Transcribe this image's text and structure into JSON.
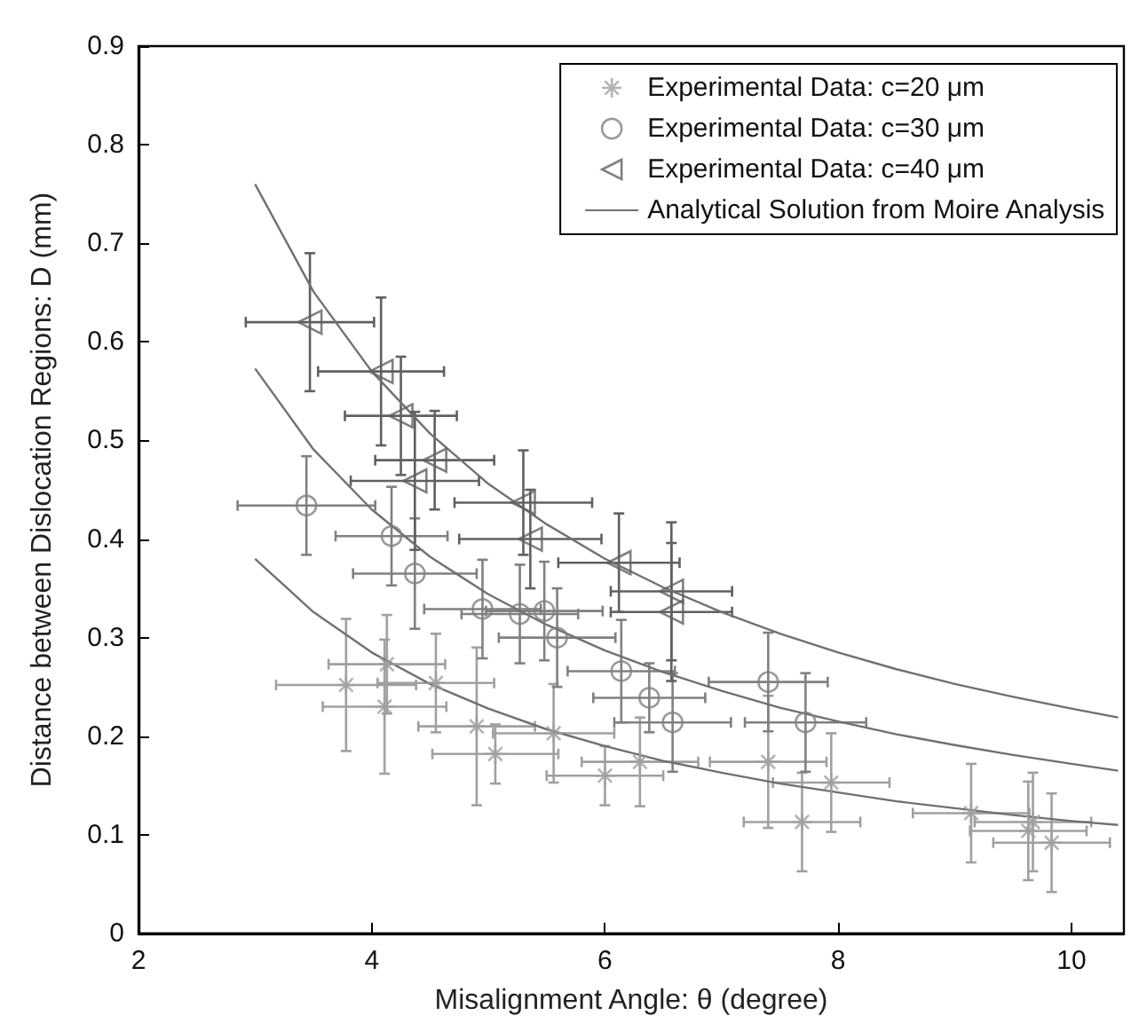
{
  "chart_data": {
    "type": "scatter",
    "xlabel": "Misalignment Angle: θ (degree)",
    "ylabel": "Distance between Dislocation Regions: D (mm)",
    "xlim": [
      2,
      10.45
    ],
    "xticks": [
      2,
      4,
      6,
      8,
      10
    ],
    "ylim": [
      0,
      0.9
    ],
    "yticks": [
      0,
      0.1,
      0.2,
      0.3,
      0.4,
      0.5,
      0.6,
      0.7,
      0.8,
      0.9
    ],
    "grid": false,
    "legend": "top right",
    "series": [
      {
        "name": "Experimental Data: c=20 μm",
        "marker": "cross",
        "color": "#a0a0a0",
        "x": [
          3.78,
          4.13,
          4.11,
          4.55,
          4.9,
          5.06,
          5.56,
          6.0,
          6.3,
          7.4,
          7.69,
          7.94,
          9.14,
          9.63,
          9.67,
          9.83
        ],
        "values": [
          0.252,
          0.273,
          0.23,
          0.254,
          0.21,
          0.182,
          0.203,
          0.16,
          0.174,
          0.174,
          0.113,
          0.153,
          0.122,
          0.104,
          0.113,
          0.092
        ],
        "errors": [
          0.067,
          0.05,
          0.068,
          0.05,
          0.08,
          0.03,
          0.05,
          0.03,
          0.045,
          0.067,
          0.05,
          0.05,
          0.05,
          0.05,
          0.05,
          0.05
        ],
        "xerrors": [
          0.6,
          0.5,
          0.53,
          0.5,
          0.5,
          0.54,
          0.52,
          0.5,
          0.5,
          0.5,
          0.5,
          0.5,
          0.5,
          0.5,
          0.5,
          0.5
        ]
      },
      {
        "name": "Experimental Data: c=30 μm",
        "marker": "circle",
        "color": "#808080",
        "x": [
          3.44,
          4.17,
          4.37,
          4.95,
          5.27,
          5.48,
          5.59,
          6.14,
          6.38,
          6.58,
          7.4,
          7.72
        ],
        "values": [
          0.434,
          0.403,
          0.365,
          0.329,
          0.324,
          0.327,
          0.3,
          0.266,
          0.239,
          0.214,
          0.255,
          0.214
        ],
        "errors": [
          0.05,
          0.05,
          0.056,
          0.05,
          0.05,
          0.05,
          0.05,
          0.052,
          0.035,
          0.05,
          0.05,
          0.05
        ],
        "xerrors": [
          0.59,
          0.48,
          0.53,
          0.5,
          0.5,
          0.5,
          0.5,
          0.46,
          0.48,
          0.5,
          0.51,
          0.52
        ]
      },
      {
        "name": "Experimental Data: c=40 μm",
        "marker": "triangle",
        "color": "#606060",
        "x": [
          3.47,
          4.08,
          4.25,
          4.54,
          4.37,
          5.3,
          5.36,
          6.12,
          6.57,
          6.57
        ],
        "values": [
          0.62,
          0.57,
          0.525,
          0.48,
          0.459,
          0.437,
          0.4,
          0.376,
          0.347,
          0.326
        ],
        "errors": [
          0.07,
          0.075,
          0.06,
          0.05,
          0.07,
          0.053,
          0.05,
          0.05,
          0.07,
          0.07
        ],
        "xerrors": [
          0.55,
          0.54,
          0.48,
          0.51,
          0.55,
          0.59,
          0.61,
          0.52,
          0.52,
          0.52
        ]
      },
      {
        "name": "Analytical Solution from Moire Analysis",
        "type": "line",
        "marker": "none",
        "color": "#707070",
        "x": [
          3,
          3.5,
          4,
          4.5,
          5,
          5.5,
          6,
          6.5,
          7,
          7.5,
          8,
          8.5,
          9,
          9.5,
          10,
          10.4
        ],
        "values": [
          0.38,
          0.326,
          0.285,
          0.253,
          0.228,
          0.207,
          0.19,
          0.175,
          0.163,
          0.152,
          0.143,
          0.134,
          0.127,
          0.12,
          0.114,
          0.11
        ]
      },
      {
        "type": "line",
        "marker": "none",
        "color": "#707070",
        "x": [
          3,
          3.5,
          4,
          4.5,
          5,
          5.5,
          6,
          6.5,
          7,
          7.5,
          8,
          8.5,
          9,
          9.5,
          10,
          10.4
        ],
        "values": [
          0.573,
          0.491,
          0.43,
          0.382,
          0.344,
          0.313,
          0.287,
          0.265,
          0.246,
          0.229,
          0.215,
          0.202,
          0.191,
          0.181,
          0.172,
          0.165
        ]
      },
      {
        "type": "line",
        "marker": "none",
        "color": "#707070",
        "x": [
          3,
          3.5,
          4,
          4.5,
          5,
          5.5,
          6,
          6.5,
          7,
          7.5,
          8,
          8.5,
          9,
          9.5,
          10,
          10.4
        ],
        "values": [
          0.76,
          0.651,
          0.57,
          0.507,
          0.456,
          0.415,
          0.38,
          0.351,
          0.326,
          0.304,
          0.285,
          0.268,
          0.253,
          0.24,
          0.228,
          0.219
        ]
      }
    ]
  }
}
